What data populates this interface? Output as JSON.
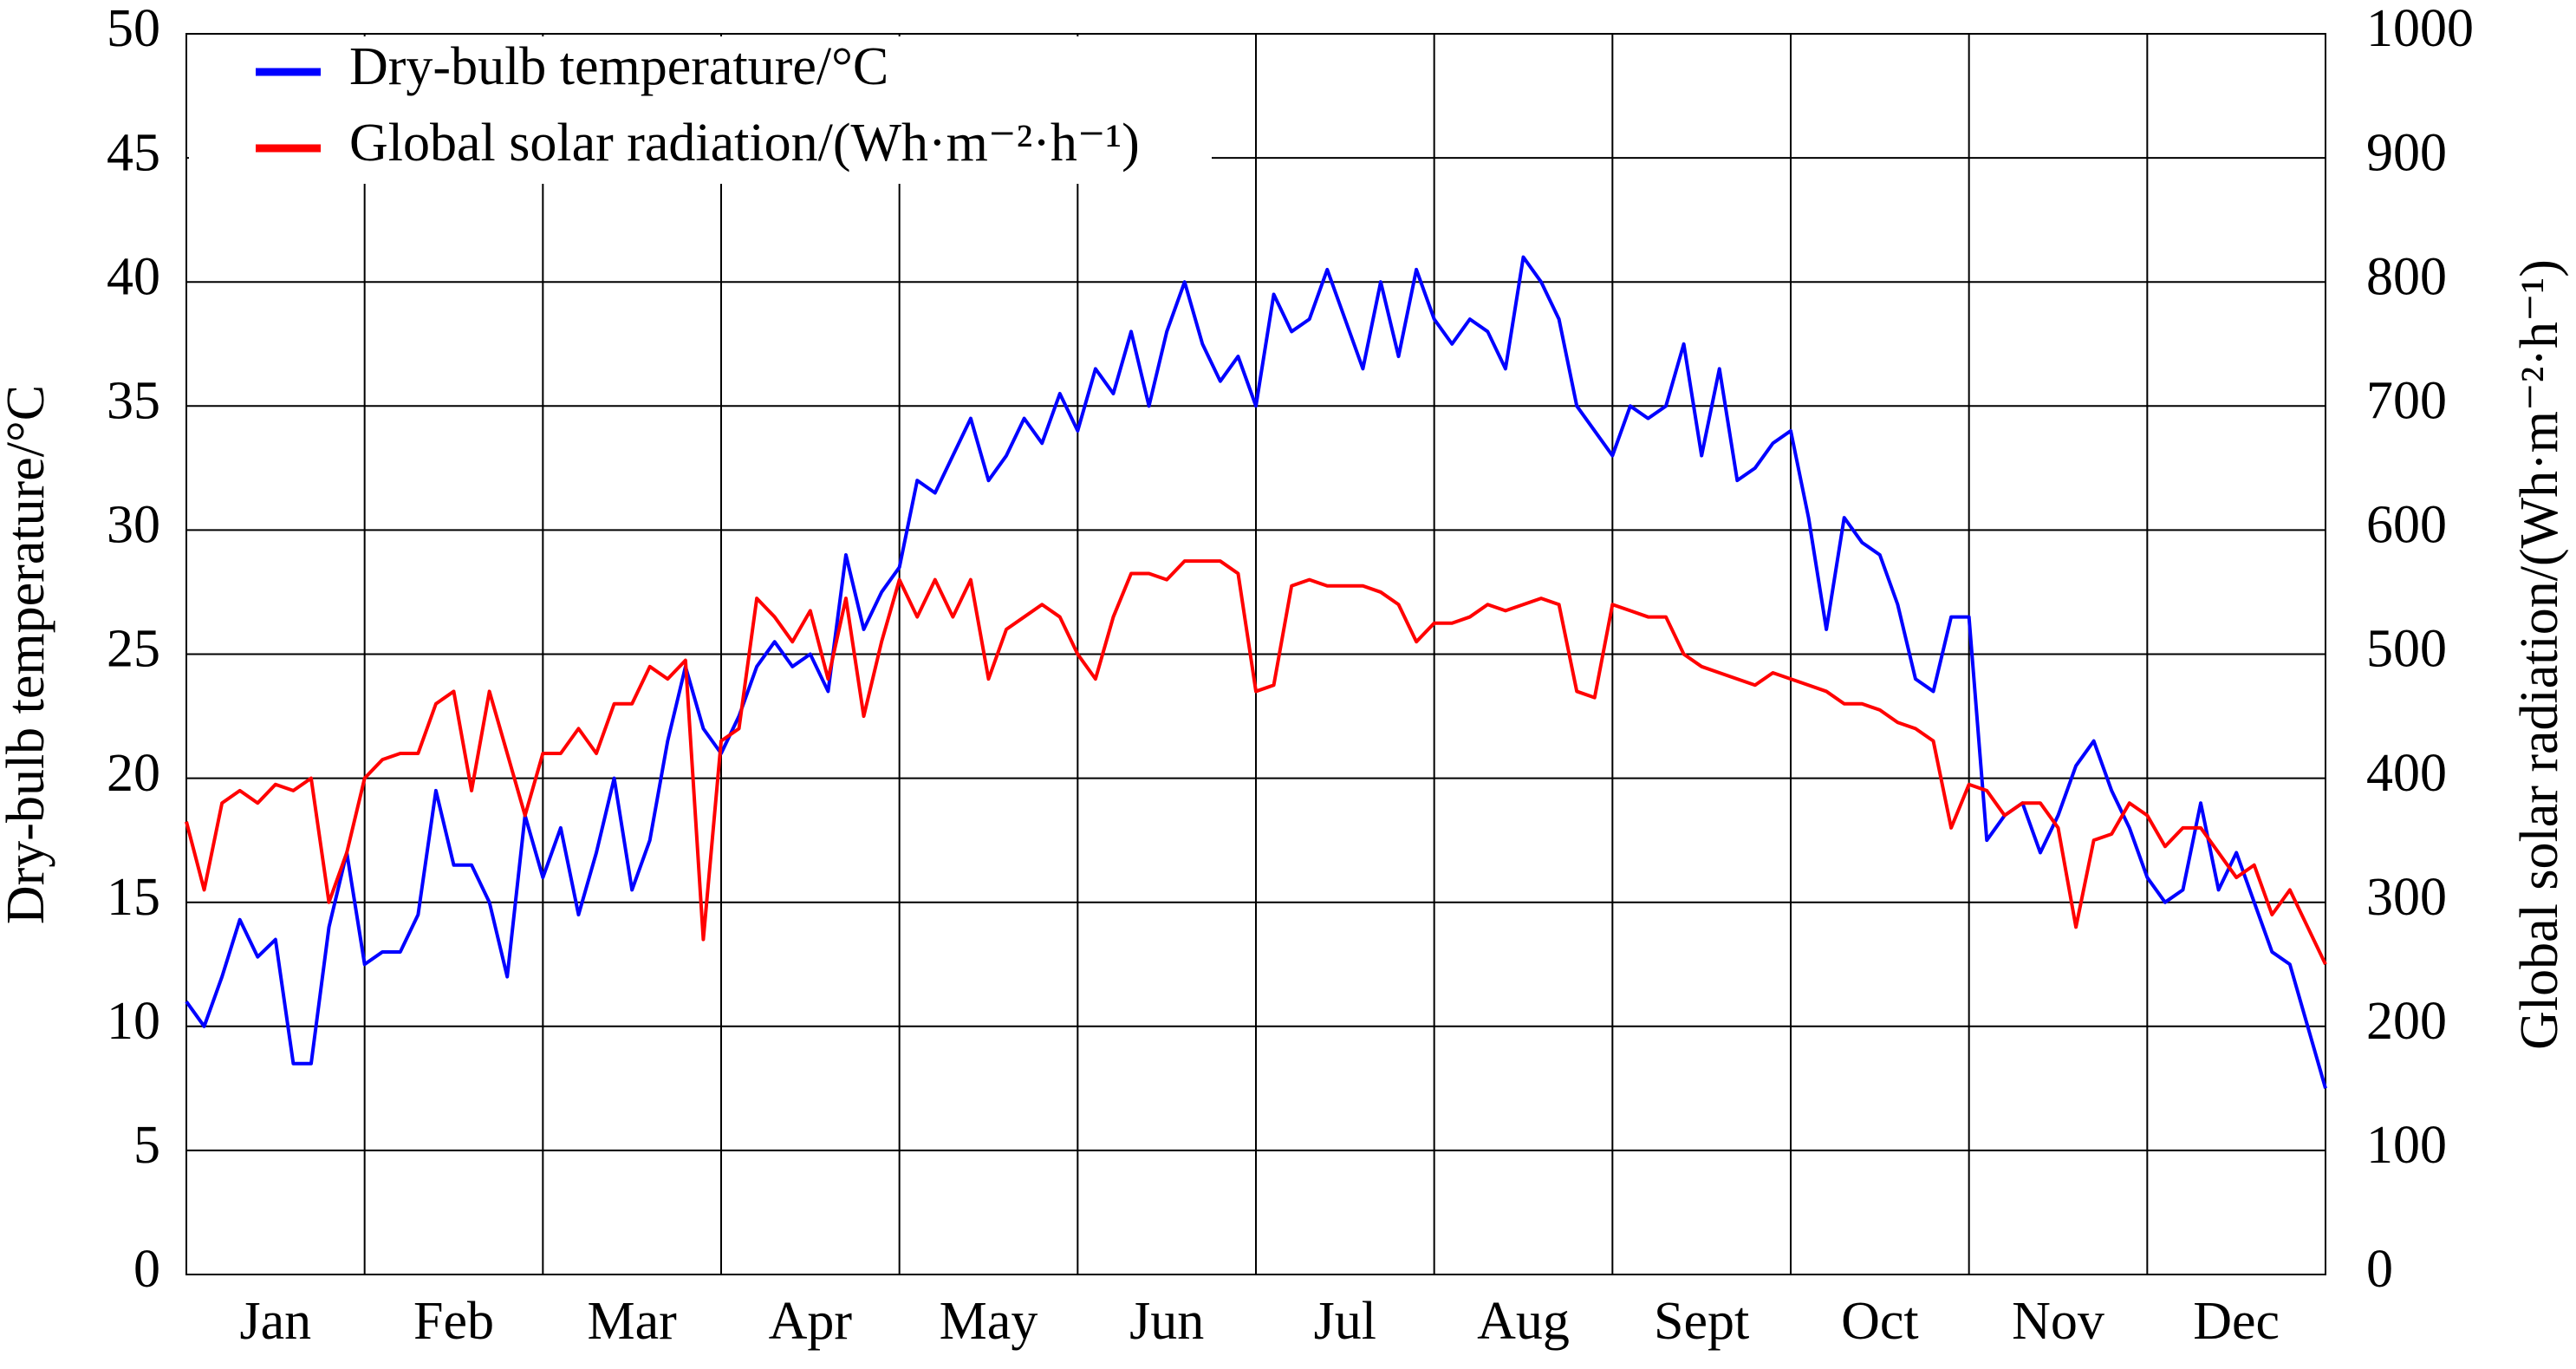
{
  "chart_data": {
    "type": "line",
    "ylabel": "Dry-bulb temperature/°C",
    "y2label": "Global solar radiation/(Wh·m⁻²·h⁻¹)",
    "xlim": [
      0,
      12
    ],
    "xticks": [
      {
        "value": 0.5,
        "label": "Jan"
      },
      {
        "value": 1.5,
        "label": "Feb"
      },
      {
        "value": 2.5,
        "label": "Mar"
      },
      {
        "value": 3.5,
        "label": "Apr"
      },
      {
        "value": 4.5,
        "label": "May"
      },
      {
        "value": 5.5,
        "label": "Jun"
      },
      {
        "value": 6.5,
        "label": "Jul"
      },
      {
        "value": 7.5,
        "label": "Aug"
      },
      {
        "value": 8.5,
        "label": "Sept"
      },
      {
        "value": 9.5,
        "label": "Oct"
      },
      {
        "value": 10.5,
        "label": "Nov"
      },
      {
        "value": 11.5,
        "label": "Dec"
      }
    ],
    "ylim": [
      0,
      50
    ],
    "yticks": [
      0,
      5,
      10,
      15,
      20,
      25,
      30,
      35,
      40,
      45,
      50
    ],
    "y2lim": [
      0,
      1000
    ],
    "y2ticks": [
      0,
      100,
      200,
      300,
      400,
      500,
      600,
      700,
      800,
      900,
      1000
    ],
    "grid": true,
    "legend": "upper left",
    "x": [
      0,
      0.1,
      0.2,
      0.3,
      0.4,
      0.5,
      0.6,
      0.7,
      0.8,
      0.9,
      1,
      1.1,
      1.2,
      1.3,
      1.4,
      1.5,
      1.6,
      1.7,
      1.8,
      1.9,
      2,
      2.1,
      2.2,
      2.3,
      2.4,
      2.5,
      2.6,
      2.7,
      2.8,
      2.9,
      3,
      3.1,
      3.2,
      3.3,
      3.4,
      3.5,
      3.6,
      3.7,
      3.8,
      3.9,
      4,
      4.1,
      4.2,
      4.3,
      4.4,
      4.5,
      4.6,
      4.7,
      4.8,
      4.9,
      5,
      5.1,
      5.2,
      5.3,
      5.4,
      5.5,
      5.6,
      5.7,
      5.8,
      5.9,
      6,
      6.1,
      6.2,
      6.3,
      6.4,
      6.5,
      6.6,
      6.7,
      6.8,
      6.9,
      7,
      7.1,
      7.2,
      7.3,
      7.4,
      7.5,
      7.6,
      7.7,
      7.8,
      7.9,
      8,
      8.1,
      8.2,
      8.3,
      8.4,
      8.5,
      8.6,
      8.7,
      8.8,
      8.9,
      9,
      9.1,
      9.2,
      9.3,
      9.4,
      9.5,
      9.6,
      9.7,
      9.8,
      9.9,
      10,
      10.1,
      10.2,
      10.3,
      10.4,
      10.5,
      10.6,
      10.7,
      10.8,
      10.9,
      11,
      11.1,
      11.2,
      11.3,
      11.4,
      11.5,
      11.6,
      11.7,
      11.8,
      11.9,
      12
    ],
    "series": [
      {
        "name": "Dry-bulb temperature/°C",
        "color": "#0000ff",
        "values": [
          11,
          10,
          12,
          14.3,
          12.8,
          13.5,
          8.5,
          8.5,
          14,
          17,
          12.5,
          13,
          13,
          14.5,
          19.5,
          16.5,
          16.5,
          15,
          12,
          18.5,
          16,
          18,
          14.5,
          17,
          20,
          15.5,
          17.5,
          21.5,
          24.5,
          22,
          21,
          22.5,
          24.5,
          25.5,
          24.5,
          25,
          23.5,
          29,
          26,
          27.5,
          28.5,
          32,
          31.5,
          33,
          34.5,
          32,
          33,
          34.5,
          33.5,
          35.5,
          34,
          36.5,
          35.5,
          38,
          35,
          38,
          40,
          37.5,
          36,
          37,
          35,
          39.5,
          38,
          38.5,
          40.5,
          38.5,
          36.5,
          40,
          37,
          40.5,
          38.5,
          37.5,
          38.5,
          38,
          36.5,
          41,
          40,
          38.5,
          35,
          34,
          33,
          35,
          34.5,
          35,
          37.5,
          33,
          36.5,
          32,
          32.5,
          33.5,
          34,
          30.5,
          26,
          30.5,
          29.5,
          29,
          27,
          24,
          23.5,
          26.5,
          26.5,
          17.5,
          18.5,
          19,
          17,
          18.5,
          20.5,
          21.5,
          19.5,
          18,
          16,
          15,
          15.5,
          19,
          15.5,
          17,
          15,
          13,
          12.5,
          10,
          7.5
        ]
      },
      {
        "name": "Global solar radiation/(Wh·m⁻²·h⁻¹)",
        "color": "#ff0000",
        "axis": "y2",
        "values": [
          365,
          310,
          380,
          390,
          380,
          395,
          390,
          400,
          300,
          340,
          400,
          415,
          420,
          420,
          460,
          470,
          390,
          470,
          420,
          370,
          420,
          420,
          440,
          420,
          460,
          460,
          490,
          480,
          495,
          270,
          430,
          440,
          545,
          530,
          510,
          535,
          480,
          545,
          450,
          510,
          560,
          530,
          560,
          530,
          560,
          480,
          520,
          530,
          540,
          530,
          500,
          480,
          530,
          565,
          565,
          560,
          575,
          575,
          575,
          565,
          470,
          475,
          555,
          560,
          555,
          555,
          555,
          550,
          540,
          510,
          525,
          525,
          530,
          540,
          535,
          540,
          545,
          540,
          470,
          465,
          540,
          535,
          530,
          530,
          500,
          490,
          485,
          480,
          475,
          485,
          480,
          475,
          470,
          460,
          460,
          455,
          445,
          440,
          430,
          360,
          395,
          390,
          370,
          380,
          380,
          360,
          280,
          350,
          355,
          380,
          370,
          345,
          360,
          360,
          340,
          320,
          330,
          290,
          310,
          280,
          250
        ]
      }
    ]
  }
}
